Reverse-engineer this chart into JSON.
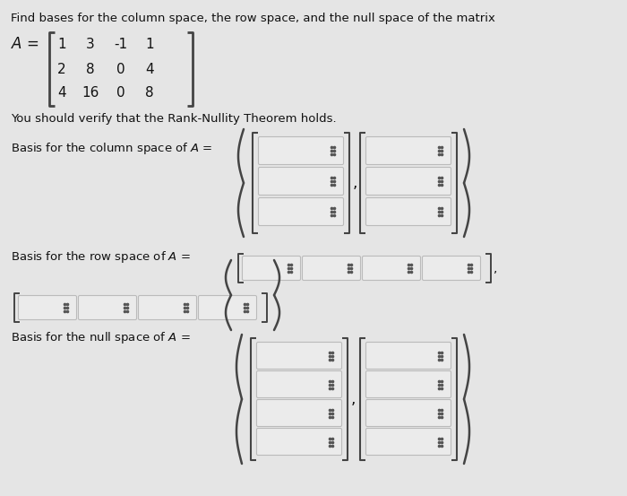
{
  "bg_color": "#e5e5e5",
  "title_text": "Find bases for the column space, the row space, and the null space of the matrix",
  "matrix_rows": [
    [
      "1",
      "3",
      "-1",
      "1"
    ],
    [
      "2",
      "8",
      "0",
      "4"
    ],
    [
      "4",
      "16",
      "0",
      "8"
    ]
  ],
  "verify_text": "You should verify that the Rank-Nullity Theorem holds.",
  "input_box_color": "#ebebeb",
  "input_box_edge": "#bbbbbb",
  "dot_color": "#555555",
  "bracket_color": "#444444",
  "font_color": "#111111",
  "font_size_main": 9.5,
  "font_size_matrix": 11
}
